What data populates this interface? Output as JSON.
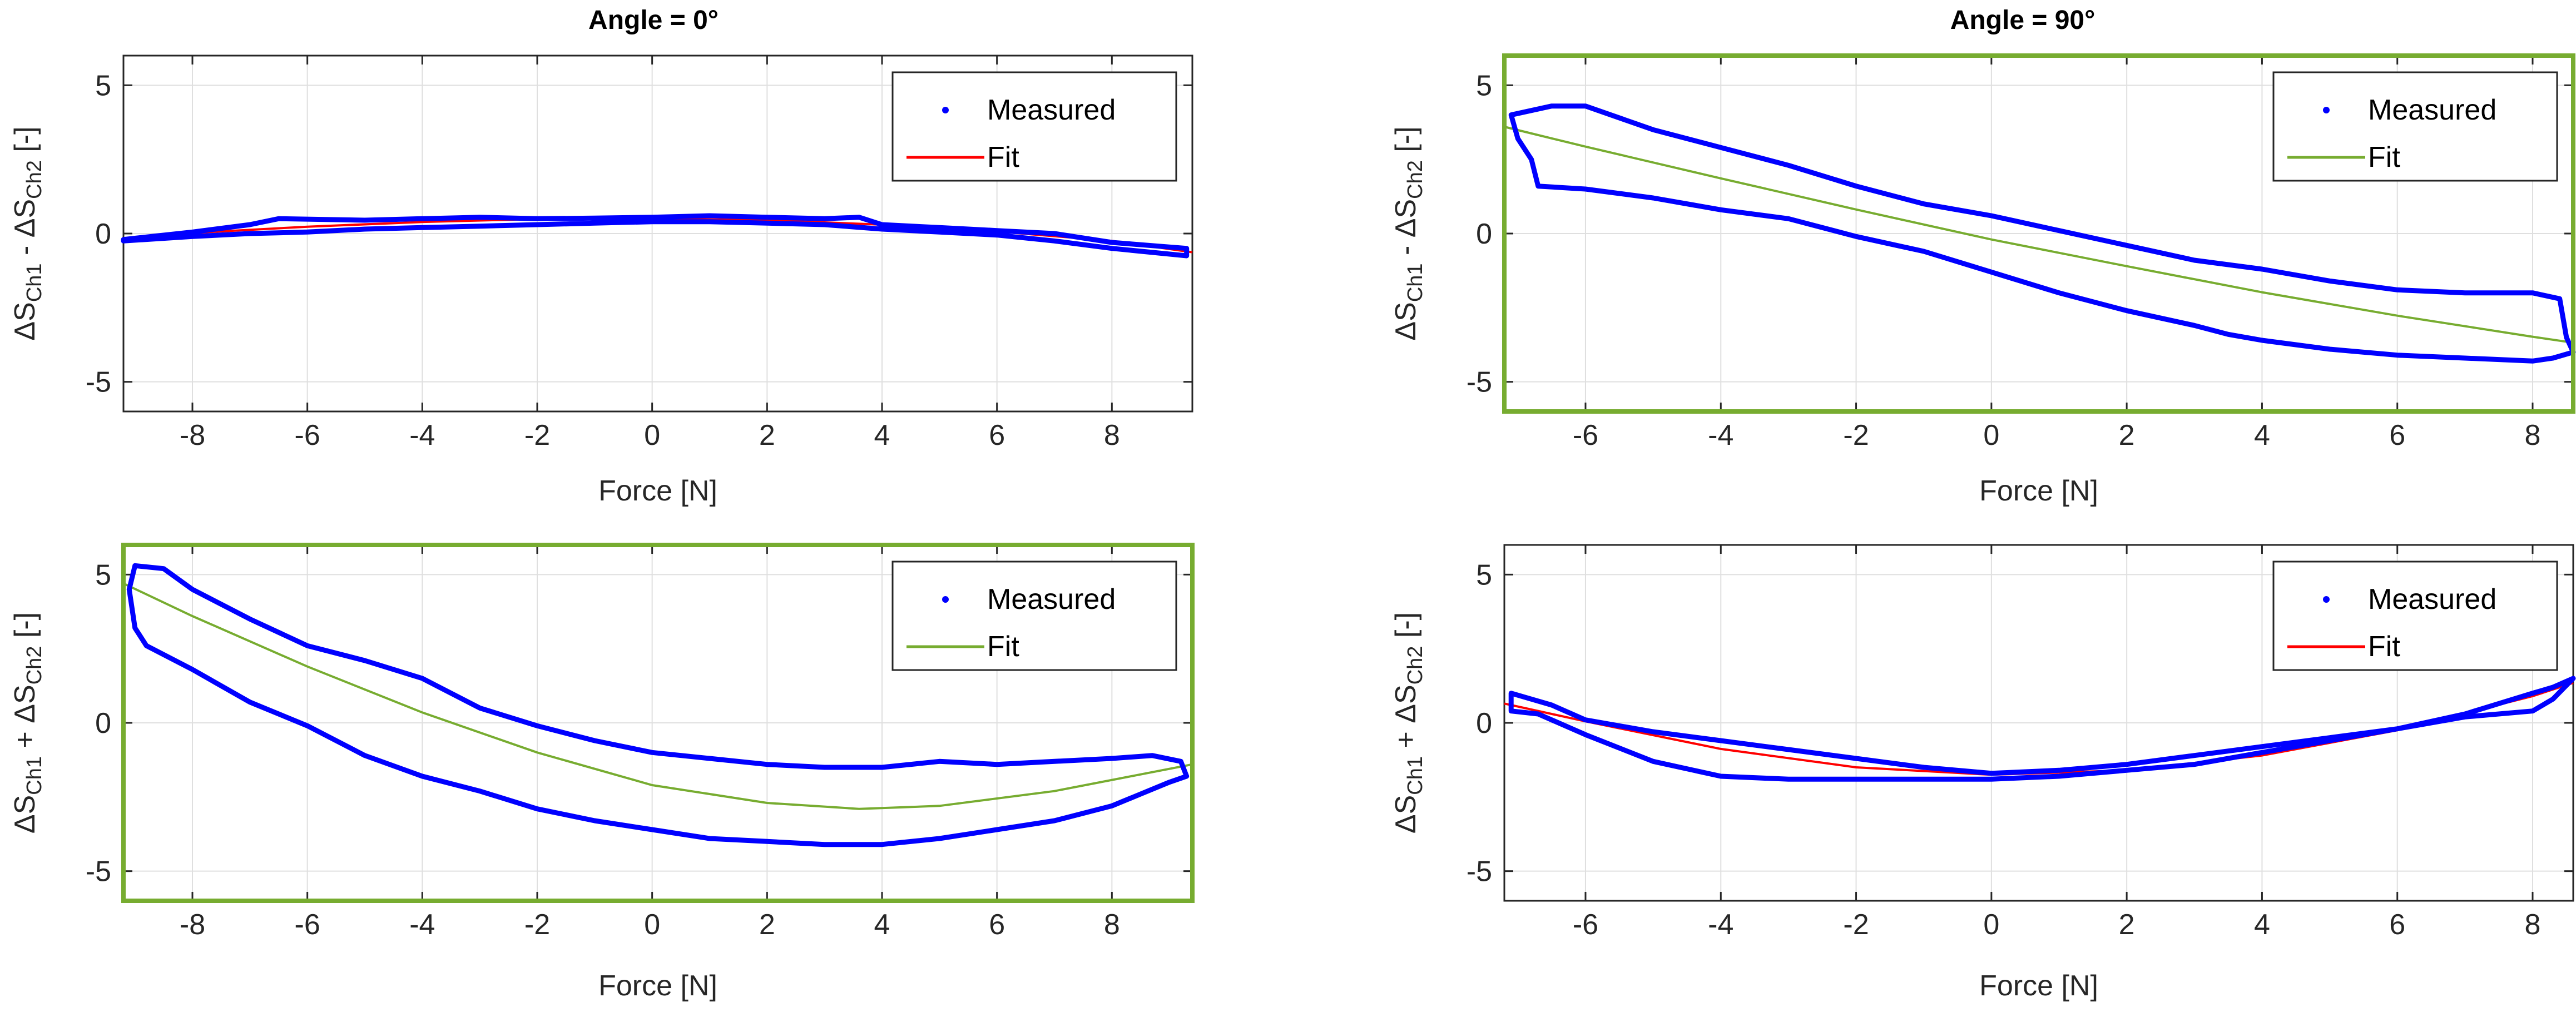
{
  "figure": {
    "colors": {
      "measured": "#0000ff",
      "fit_red": "#ff0000",
      "fit_green": "#77ac30",
      "highlight_box": "#77ac30",
      "axes": "#262626",
      "grid": "#dfdfdf"
    }
  },
  "chart_data": [
    {
      "type": "line",
      "id": "diff-0",
      "title": "Angle = 0°",
      "xlabel": "Force [N]",
      "ylabel": {
        "delta": "Δ",
        "s": "S",
        "sub1": "Ch1",
        "op": " - ",
        "sub2": "Ch2",
        "unit": " [-]"
      },
      "xlim": [
        -9.2,
        9.4
      ],
      "ylim": [
        -6,
        6
      ],
      "xticks": [
        -8,
        -6,
        -4,
        -2,
        0,
        2,
        4,
        6,
        8
      ],
      "yticks": [
        -5,
        0,
        5
      ],
      "grid": true,
      "highlighted": false,
      "legend": {
        "position": "top-right",
        "measured_label": "Measured",
        "fit_label": "Fit"
      },
      "fit_color": "#ff0000",
      "series": [
        {
          "name": "Measured",
          "kind": "closed-loop",
          "x": [
            -9.2,
            -8,
            -7,
            -6.5,
            -5,
            -4,
            -3,
            -2,
            -1,
            0,
            1,
            2,
            3,
            3.6,
            4,
            5,
            6,
            7,
            8,
            9.3,
            9.3,
            8,
            7,
            6,
            5,
            4,
            3,
            2,
            1,
            0,
            -1,
            -2,
            -3,
            -4,
            -5,
            -6,
            -7,
            -8,
            -9.2
          ],
          "y": [
            -0.2,
            0.05,
            0.3,
            0.5,
            0.45,
            0.5,
            0.55,
            0.5,
            0.52,
            0.55,
            0.6,
            0.55,
            0.5,
            0.55,
            0.3,
            0.2,
            0.1,
            0,
            -0.3,
            -0.5,
            -0.75,
            -0.5,
            -0.25,
            -0.05,
            0.05,
            0.15,
            0.3,
            0.35,
            0.4,
            0.4,
            0.35,
            0.3,
            0.25,
            0.2,
            0.15,
            0.05,
            0,
            -0.1,
            -0.25
          ]
        },
        {
          "name": "Fit",
          "kind": "line",
          "x": [
            -9.2,
            -8,
            -6,
            -4,
            -2,
            0,
            2,
            4,
            6,
            8,
            9.4
          ],
          "y": [
            -0.2,
            0.02,
            0.23,
            0.39,
            0.49,
            0.5,
            0.45,
            0.3,
            0.07,
            -0.25,
            -0.63
          ]
        }
      ]
    },
    {
      "type": "line",
      "id": "diff-90",
      "title": "Angle = 90°",
      "xlabel": "Force [N]",
      "ylabel": {
        "delta": "Δ",
        "s": "S",
        "sub1": "Ch1",
        "op": " - ",
        "sub2": "Ch2",
        "unit": " [-]"
      },
      "xlim": [
        -7.2,
        8.6
      ],
      "ylim": [
        -6,
        6
      ],
      "xticks": [
        -6,
        -4,
        -2,
        0,
        2,
        4,
        6,
        8
      ],
      "yticks": [
        -5,
        0,
        5
      ],
      "grid": true,
      "highlighted": true,
      "legend": {
        "position": "top-right",
        "measured_label": "Measured",
        "fit_label": "Fit"
      },
      "fit_color": "#77ac30",
      "series": [
        {
          "name": "Measured",
          "kind": "closed-loop",
          "x": [
            -7.1,
            -6.5,
            -6,
            -5,
            -4,
            -3,
            -2,
            -1,
            0,
            1,
            2,
            3,
            4,
            5,
            6,
            7,
            8,
            8.4,
            8.5,
            8.6,
            8.3,
            8,
            7,
            6,
            5,
            4,
            3.5,
            3,
            2,
            1,
            0,
            -1,
            -2,
            -3,
            -4,
            -5,
            -6,
            -6.7,
            -6.8,
            -7,
            -7.1
          ],
          "y": [
            4,
            4.3,
            4.3,
            3.5,
            2.9,
            2.3,
            1.6,
            1,
            0.6,
            0.1,
            -0.4,
            -0.9,
            -1.2,
            -1.6,
            -1.9,
            -2,
            -2,
            -2.2,
            -3.5,
            -4,
            -4.2,
            -4.3,
            -4.2,
            -4.1,
            -3.9,
            -3.6,
            -3.4,
            -3.1,
            -2.6,
            -2,
            -1.3,
            -0.6,
            -0.1,
            0.5,
            0.8,
            1.2,
            1.5,
            1.6,
            2.5,
            3.2,
            4
          ]
        },
        {
          "name": "Fit",
          "kind": "line",
          "x": [
            -7.2,
            -6,
            -4,
            -2,
            0,
            2,
            4,
            6,
            8,
            8.6
          ],
          "y": [
            3.6,
            2.93,
            1.86,
            0.81,
            -0.2,
            -1.1,
            -1.98,
            -2.77,
            -3.48,
            -3.68
          ]
        }
      ]
    },
    {
      "type": "line",
      "id": "sum-0",
      "title": "",
      "xlabel": "Force [N]",
      "ylabel": {
        "delta": "Δ",
        "s": "S",
        "sub1": "Ch1",
        "op": " + ",
        "sub2": "Ch2",
        "unit": " [-]"
      },
      "xlim": [
        -9.2,
        9.4
      ],
      "ylim": [
        -6,
        6
      ],
      "xticks": [
        -8,
        -6,
        -4,
        -2,
        0,
        2,
        4,
        6,
        8
      ],
      "yticks": [
        -5,
        0,
        5
      ],
      "grid": true,
      "highlighted": true,
      "legend": {
        "position": "top-right",
        "measured_label": "Measured",
        "fit_label": "Fit"
      },
      "fit_color": "#77ac30",
      "series": [
        {
          "name": "Measured",
          "kind": "closed-loop",
          "x": [
            -9,
            -8.5,
            -8,
            -7,
            -6,
            -5,
            -4,
            -3,
            -2,
            -1,
            0,
            1,
            2,
            3,
            4,
            5,
            6,
            7,
            8,
            8.7,
            9.2,
            9.3,
            9,
            8.5,
            8,
            7,
            6,
            5,
            4,
            3,
            2,
            1,
            0,
            -1,
            -2,
            -3,
            -4,
            -5,
            -6,
            -7,
            -8,
            -8.8,
            -9,
            -9.1,
            -9
          ],
          "y": [
            5.3,
            5.2,
            4.5,
            3.5,
            2.6,
            2.1,
            1.5,
            0.5,
            -0.1,
            -0.6,
            -1,
            -1.2,
            -1.4,
            -1.5,
            -1.5,
            -1.3,
            -1.4,
            -1.3,
            -1.2,
            -1.1,
            -1.3,
            -1.8,
            -2,
            -2.4,
            -2.8,
            -3.3,
            -3.6,
            -3.9,
            -4.1,
            -4.1,
            -4,
            -3.9,
            -3.6,
            -3.3,
            -2.9,
            -2.3,
            -1.8,
            -1.1,
            -0.1,
            0.7,
            1.8,
            2.6,
            3.2,
            4.5,
            5.3
          ]
        },
        {
          "name": "Fit",
          "kind": "line",
          "x": [
            -9.2,
            -8,
            -6,
            -4,
            -2,
            0,
            2,
            3.6,
            5,
            7,
            9.4
          ],
          "y": [
            4.7,
            3.6,
            1.9,
            0.35,
            -1,
            -2.1,
            -2.7,
            -2.9,
            -2.8,
            -2.3,
            -1.4
          ]
        }
      ]
    },
    {
      "type": "line",
      "id": "sum-90",
      "title": "",
      "xlabel": "Force [N]",
      "ylabel": {
        "delta": "Δ",
        "s": "S",
        "sub1": "Ch1",
        "op": " + ",
        "sub2": "Ch2",
        "unit": " [-]"
      },
      "xlim": [
        -7.2,
        8.6
      ],
      "ylim": [
        -6,
        6
      ],
      "xticks": [
        -6,
        -4,
        -2,
        0,
        2,
        4,
        6,
        8
      ],
      "yticks": [
        -5,
        0,
        5
      ],
      "grid": true,
      "highlighted": false,
      "legend": {
        "position": "top-right",
        "measured_label": "Measured",
        "fit_label": "Fit"
      },
      "fit_color": "#ff0000",
      "series": [
        {
          "name": "Measured",
          "kind": "closed-loop",
          "x": [
            -7.1,
            -6.5,
            -6,
            -5,
            -4,
            -3,
            -2,
            -1,
            0,
            1,
            2,
            3,
            4,
            5,
            6,
            7,
            8,
            8.3,
            8.6,
            8.3,
            8,
            7,
            6,
            5,
            4,
            3,
            2,
            1,
            0,
            -1,
            -2,
            -3,
            -4,
            -5,
            -6,
            -6.7,
            -7.1
          ],
          "y": [
            1,
            0.6,
            0.1,
            -0.3,
            -0.6,
            -0.9,
            -1.2,
            -1.5,
            -1.7,
            -1.6,
            -1.4,
            -1.1,
            -0.8,
            -0.5,
            -0.2,
            0.3,
            1,
            1.2,
            1.5,
            0.8,
            0.4,
            0.2,
            -0.2,
            -0.6,
            -1,
            -1.4,
            -1.6,
            -1.8,
            -1.9,
            -1.9,
            -1.9,
            -1.9,
            -1.8,
            -1.3,
            -0.4,
            0.3,
            0.4
          ]
        },
        {
          "name": "Fit",
          "kind": "line",
          "x": [
            -7.2,
            -6,
            -4,
            -2,
            0,
            2,
            4,
            6,
            8,
            8.6
          ],
          "y": [
            0.65,
            0.05,
            -0.88,
            -1.5,
            -1.75,
            -1.6,
            -1.1,
            -0.25,
            0.9,
            1.35
          ]
        }
      ]
    }
  ]
}
